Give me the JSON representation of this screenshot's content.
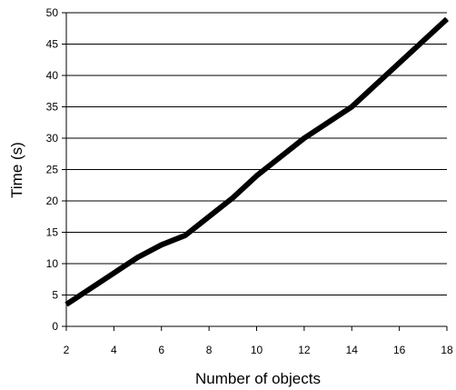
{
  "chart_data": {
    "type": "line",
    "xlabel": "Number of objects",
    "ylabel": "Time (s)",
    "xlim": [
      2,
      18
    ],
    "ylim": [
      0,
      50
    ],
    "x_ticks": [
      2,
      4,
      6,
      8,
      10,
      12,
      14,
      16,
      18
    ],
    "y_ticks": [
      0,
      5,
      10,
      15,
      20,
      25,
      30,
      35,
      40,
      45,
      50
    ],
    "grid": "horizontal",
    "series": [
      {
        "x": [
          2,
          3,
          4,
          5,
          6,
          7,
          8,
          9,
          10,
          11,
          12,
          13,
          14,
          15,
          16,
          17,
          18
        ],
        "y": [
          3.5,
          6.0,
          8.5,
          11.0,
          13.0,
          14.5,
          17.5,
          20.5,
          24.0,
          27.0,
          30.0,
          32.5,
          35.0,
          38.5,
          42.0,
          45.5,
          49.0
        ],
        "color": "#000000"
      }
    ]
  }
}
